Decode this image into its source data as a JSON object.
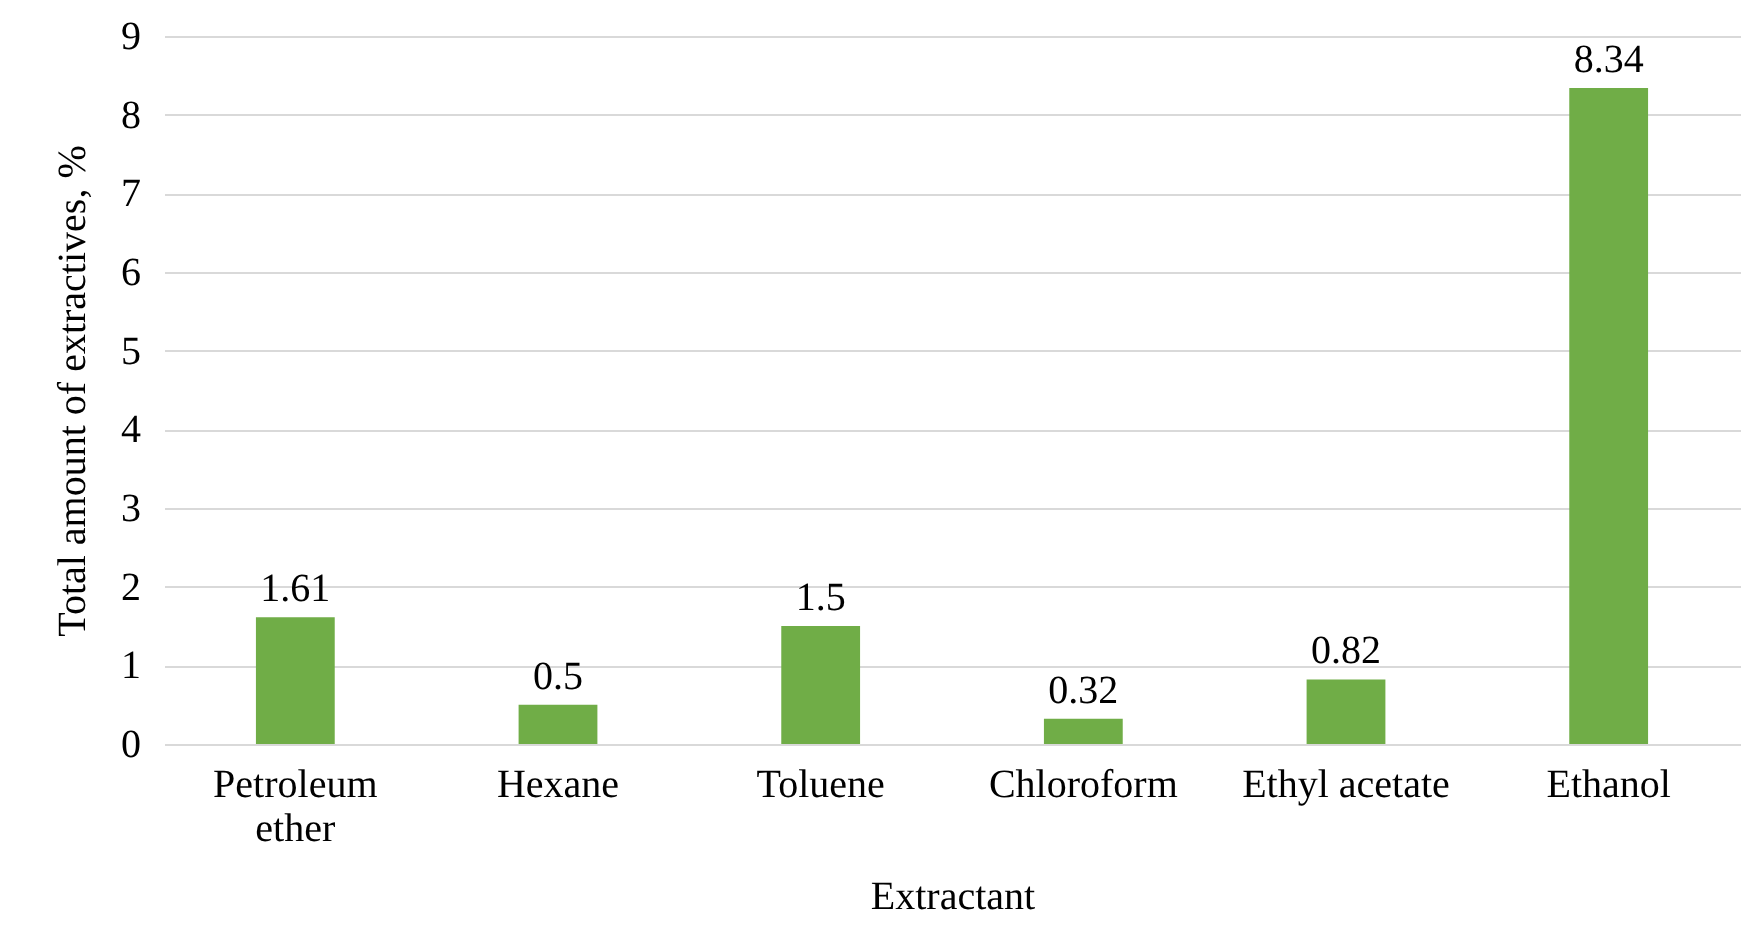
{
  "chart_data": {
    "type": "bar",
    "xlabel": "Extractant",
    "ylabel": "Total amount of extractives, %",
    "categories": [
      "Petroleum ether",
      "Hexane",
      "Toluene",
      "Chloroform",
      "Ethyl acetate",
      "Ethanol"
    ],
    "values": [
      1.61,
      0.5,
      1.5,
      0.32,
      0.82,
      8.34
    ],
    "color": "#70ad47",
    "ylim": [
      0,
      9
    ],
    "yticks": [
      0,
      1,
      2,
      3,
      4,
      5,
      6,
      7,
      8,
      9
    ],
    "grid": "y",
    "data_labels": true
  }
}
